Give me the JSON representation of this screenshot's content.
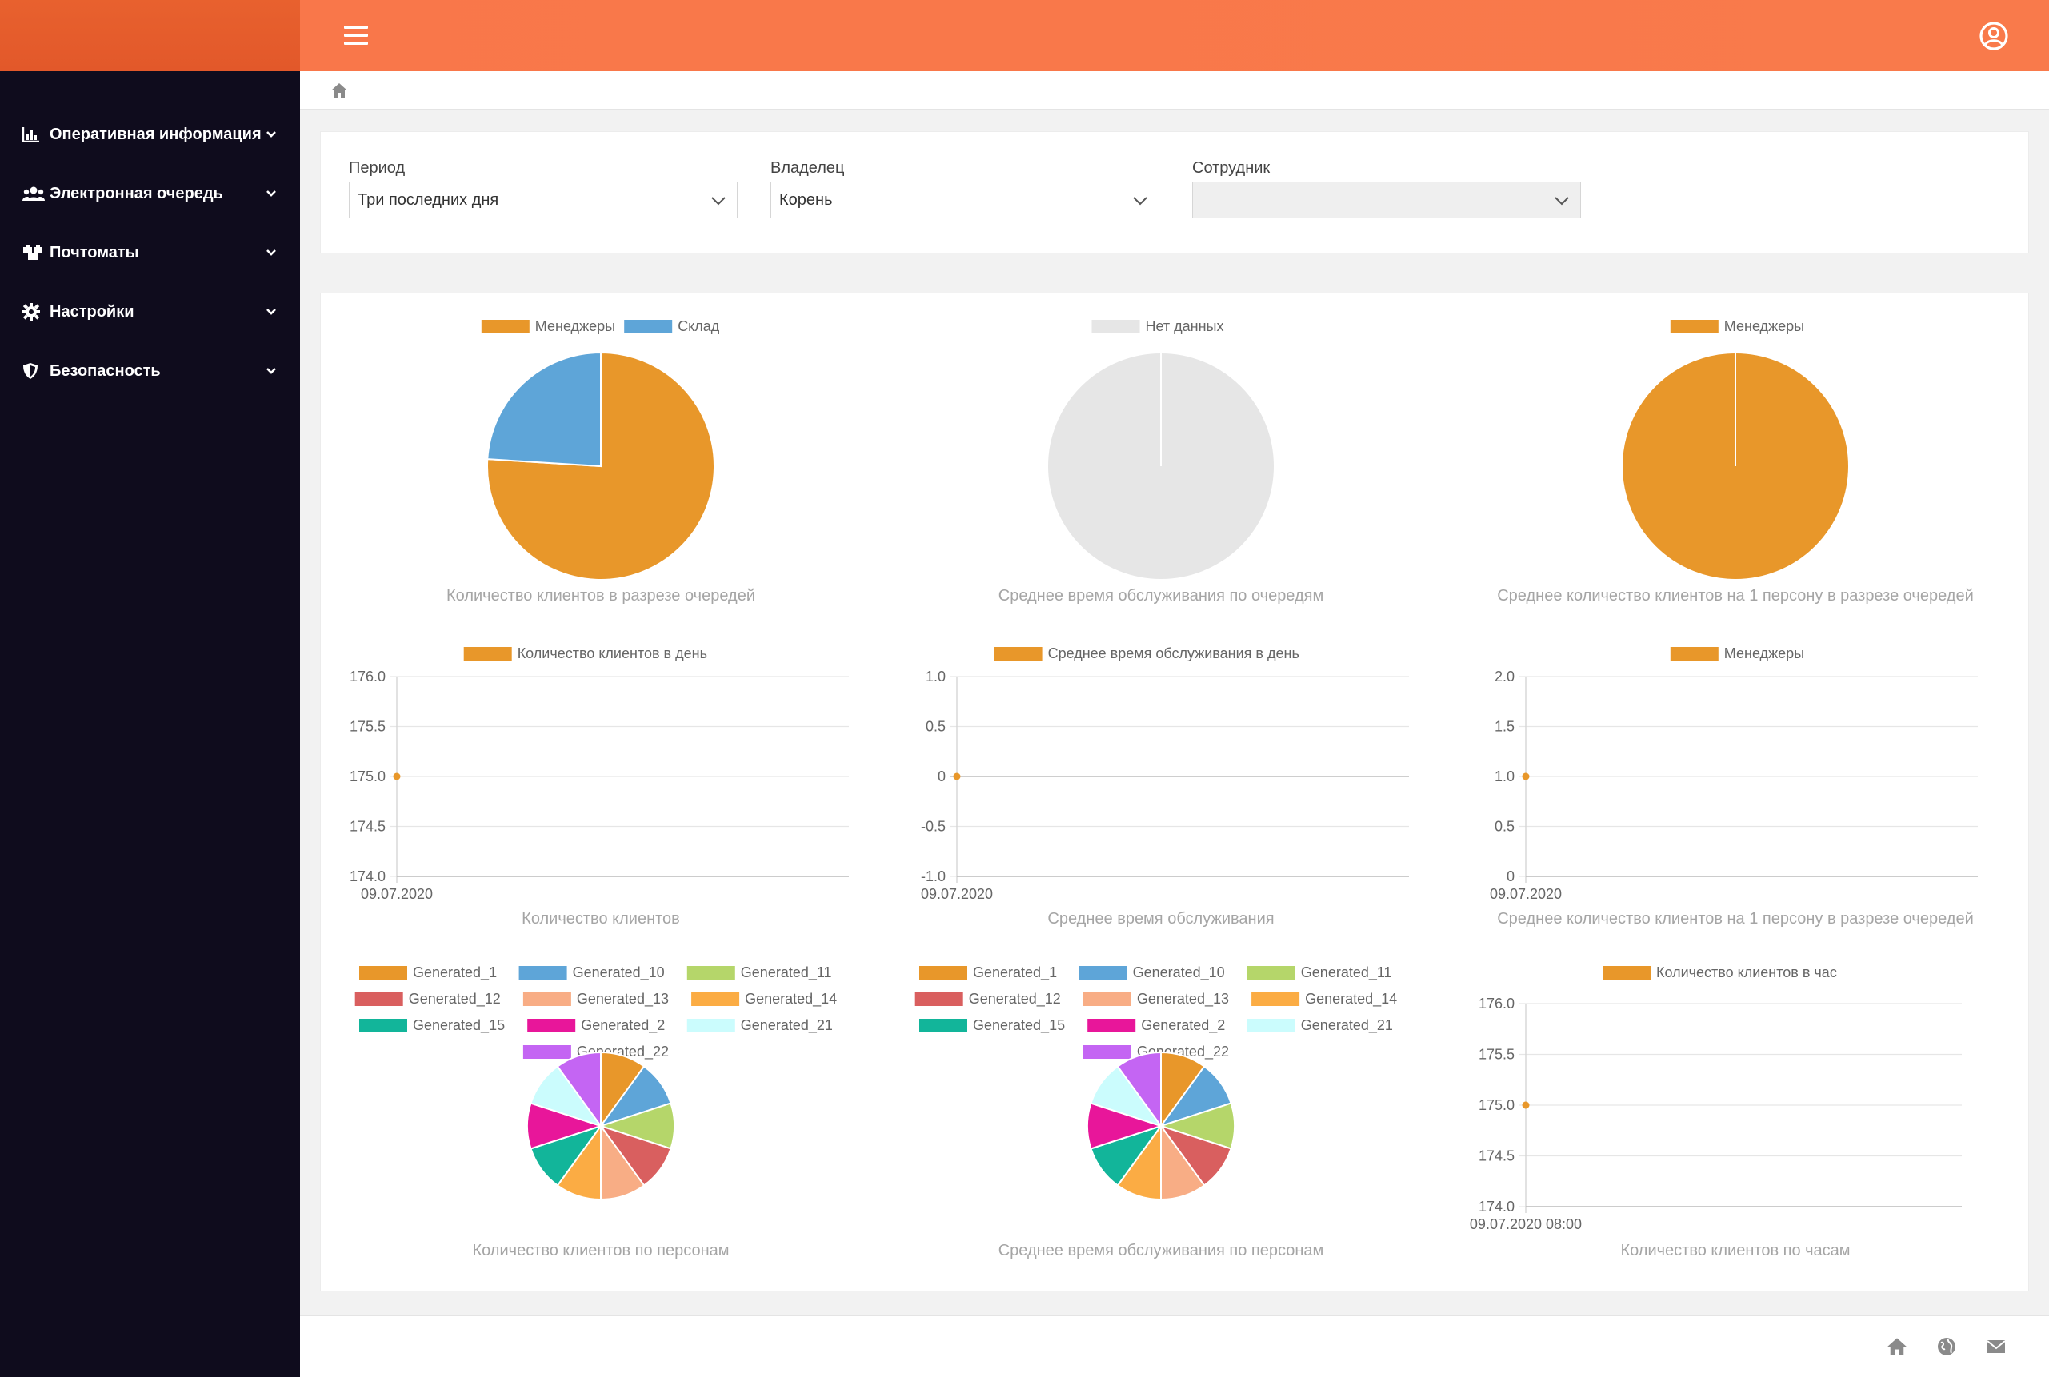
{
  "sidebar": {
    "items": [
      {
        "label": "Оперативная информация",
        "icon": "bar-chart-icon"
      },
      {
        "label": "Электронная очередь",
        "icon": "users-icon"
      },
      {
        "label": "Почтоматы",
        "icon": "boxes-icon"
      },
      {
        "label": "Настройки",
        "icon": "gear-icon"
      },
      {
        "label": "Безопасность",
        "icon": "shield-icon"
      }
    ]
  },
  "header": {
    "menu_icon": "hamburger-icon",
    "user_icon": "user-circle-icon"
  },
  "breadcrumb": {
    "icon": "home-icon"
  },
  "filters": {
    "period": {
      "label": "Период",
      "value": "Три последних дня"
    },
    "owner": {
      "label": "Владелец",
      "value": "Корень"
    },
    "employee": {
      "label": "Сотрудник",
      "value": ""
    }
  },
  "colors": {
    "primary": "#f97a4b",
    "sidebar": "#0f0c1d",
    "series_orange": "#e8972a",
    "series_blue": "#5ea5d8",
    "nodata": "#e6e6e6"
  },
  "chart_data": [
    {
      "type": "pie",
      "title": "Количество клиентов в разрезе очередей",
      "legend": "top",
      "slices": [
        {
          "name": "Менеджеры",
          "value": 76,
          "color": "#e8972a"
        },
        {
          "name": "Склад",
          "value": 24,
          "color": "#5ea5d8"
        }
      ]
    },
    {
      "type": "pie",
      "title": "Среднее время обслуживания по очередям",
      "legend": "top",
      "slices": [
        {
          "name": "Нет данных",
          "value": 100,
          "color": "#e6e6e6"
        }
      ]
    },
    {
      "type": "pie",
      "title": "Среднее количество клиентов на 1 персону в разрезе очередей",
      "legend": "top",
      "slices": [
        {
          "name": "Менеджеры",
          "value": 100,
          "color": "#e8972a"
        }
      ]
    },
    {
      "type": "line",
      "title": "Количество клиентов",
      "legend": "top",
      "series_name": "Количество клиентов в день",
      "x": [
        "09.07.2020"
      ],
      "y": [
        175.0
      ],
      "ylim": [
        174.0,
        176.0
      ],
      "yticks": [
        "176.0",
        "175.5",
        "175.0",
        "174.5",
        "174.0"
      ],
      "color": "#e8972a"
    },
    {
      "type": "line",
      "title": "Среднее время обслуживания",
      "legend": "top",
      "series_name": "Среднее время обслуживания в день",
      "x": [
        "09.07.2020"
      ],
      "y": [
        0
      ],
      "ylim": [
        -1.0,
        1.0
      ],
      "yticks": [
        "1.0",
        "0.5",
        "0",
        "-0.5",
        "-1.0"
      ],
      "color": "#e8972a"
    },
    {
      "type": "line",
      "title": "Среднее количество клиентов на 1 персону в разрезе очередей",
      "legend": "top",
      "series_name": "Менеджеры",
      "x": [
        "09.07.2020"
      ],
      "y": [
        1.0
      ],
      "ylim": [
        0,
        2.0
      ],
      "yticks": [
        "2.0",
        "1.5",
        "1.0",
        "0.5",
        "0"
      ],
      "color": "#e8972a"
    },
    {
      "type": "pie",
      "title": "Количество клиентов по персонам",
      "legend": "top",
      "slices": [
        {
          "name": "Generated_1",
          "value": 1,
          "color": "#e8972a"
        },
        {
          "name": "Generated_10",
          "value": 1,
          "color": "#5ea5d8"
        },
        {
          "name": "Generated_11",
          "value": 1,
          "color": "#b5d66a"
        },
        {
          "name": "Generated_12",
          "value": 1,
          "color": "#d95f5f"
        },
        {
          "name": "Generated_13",
          "value": 1,
          "color": "#f8ad85"
        },
        {
          "name": "Generated_14",
          "value": 1,
          "color": "#fbac44"
        },
        {
          "name": "Generated_15",
          "value": 1,
          "color": "#12b59a"
        },
        {
          "name": "Generated_2",
          "value": 1,
          "color": "#e8169a"
        },
        {
          "name": "Generated_21",
          "value": 1,
          "color": "#cbfcfd"
        },
        {
          "name": "Generated_22",
          "value": 1,
          "color": "#c465f3"
        }
      ]
    },
    {
      "type": "pie",
      "title": "Среднее время обслуживания по персонам",
      "legend": "top",
      "slices": [
        {
          "name": "Generated_1",
          "value": 1,
          "color": "#e8972a"
        },
        {
          "name": "Generated_10",
          "value": 1,
          "color": "#5ea5d8"
        },
        {
          "name": "Generated_11",
          "value": 1,
          "color": "#b5d66a"
        },
        {
          "name": "Generated_12",
          "value": 1,
          "color": "#d95f5f"
        },
        {
          "name": "Generated_13",
          "value": 1,
          "color": "#f8ad85"
        },
        {
          "name": "Generated_14",
          "value": 1,
          "color": "#fbac44"
        },
        {
          "name": "Generated_15",
          "value": 1,
          "color": "#12b59a"
        },
        {
          "name": "Generated_2",
          "value": 1,
          "color": "#e8169a"
        },
        {
          "name": "Generated_21",
          "value": 1,
          "color": "#cbfcfd"
        },
        {
          "name": "Generated_22",
          "value": 1,
          "color": "#c465f3"
        }
      ]
    },
    {
      "type": "line",
      "title": "Количество клиентов по часам",
      "legend": "top",
      "series_name": "Количество клиентов в час",
      "x": [
        "09.07.2020 08:00"
      ],
      "y": [
        175.0
      ],
      "ylim": [
        174.0,
        176.0
      ],
      "yticks": [
        "176.0",
        "175.5",
        "175.0",
        "174.5",
        "174.0"
      ],
      "color": "#e8972a"
    }
  ],
  "footer": {
    "icons": [
      "home-icon",
      "globe-icon",
      "mail-icon"
    ]
  }
}
